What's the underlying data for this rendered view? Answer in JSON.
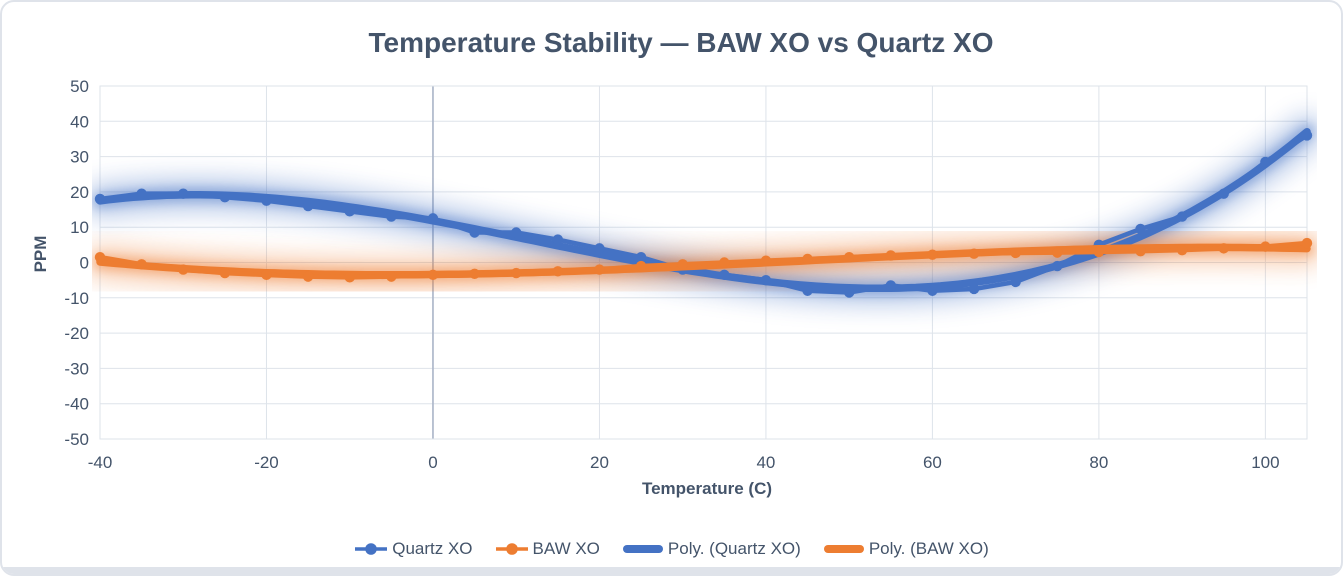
{
  "style": {
    "title_color": "#44546A",
    "text_color": "#44546A",
    "grid_color": "#dee3ea",
    "zero_axis_color": "#aeb8ca",
    "frame_border_color": "#dfe3ea",
    "bottom_strip_color": "#dfe3ea",
    "series_blue": "#4472C4",
    "series_orange": "#ED7D31"
  },
  "chart_data": {
    "type": "line",
    "title": "Temperature Stability — BAW XO vs Quartz XO",
    "xlabel": "Temperature (C)",
    "ylabel": "PPM",
    "xlim": [
      -40,
      105
    ],
    "ylim": [
      -50,
      50
    ],
    "x_ticks": [
      -40,
      -20,
      0,
      20,
      40,
      60,
      80,
      100
    ],
    "y_ticks": [
      50,
      40,
      30,
      20,
      10,
      0,
      -10,
      -20,
      -30,
      -40,
      -50
    ],
    "grid": true,
    "legend_position": "bottom",
    "x": [
      -40,
      -35,
      -30,
      -25,
      -20,
      -15,
      -10,
      -5,
      0,
      5,
      10,
      15,
      20,
      25,
      30,
      35,
      40,
      45,
      50,
      55,
      60,
      65,
      70,
      75,
      80,
      85,
      90,
      95,
      100,
      105
    ],
    "series": [
      {
        "name": "Quartz XO",
        "color": "#4472C4",
        "marker": "circle",
        "values": [
          18,
          19.5,
          19.5,
          18.5,
          17.5,
          16,
          14.5,
          13,
          12.5,
          8.5,
          8.5,
          6.5,
          4,
          1.5,
          -2,
          -3.5,
          -5,
          -8,
          -8.5,
          -6.5,
          -8,
          -7.5,
          -5.5,
          -1,
          5,
          9.5,
          13,
          19.5,
          28.5,
          36
        ]
      },
      {
        "name": "BAW XO",
        "color": "#ED7D31",
        "marker": "circle",
        "values": [
          1.5,
          -0.5,
          -2,
          -3,
          -3.5,
          -4,
          -4.2,
          -4,
          -3.5,
          -3.2,
          -3,
          -2.5,
          -2,
          -1,
          -0.5,
          0,
          0.5,
          1,
          1.5,
          2,
          2.2,
          2.5,
          2.7,
          2.8,
          3,
          3.2,
          3.5,
          4,
          4.5,
          5.5
        ]
      }
    ],
    "trendlines": [
      {
        "name": "Poly. (Quartz XO)",
        "series": "Quartz XO",
        "type": "polynomial",
        "color": "#4472C4",
        "glow": true
      },
      {
        "name": "Poly. (BAW XO)",
        "series": "BAW XO",
        "type": "polynomial",
        "color": "#ED7D31",
        "glow": true
      }
    ],
    "legend": [
      "Quartz XO",
      "BAW XO",
      "Poly. (Quartz XO)",
      "Poly. (BAW XO)"
    ]
  }
}
